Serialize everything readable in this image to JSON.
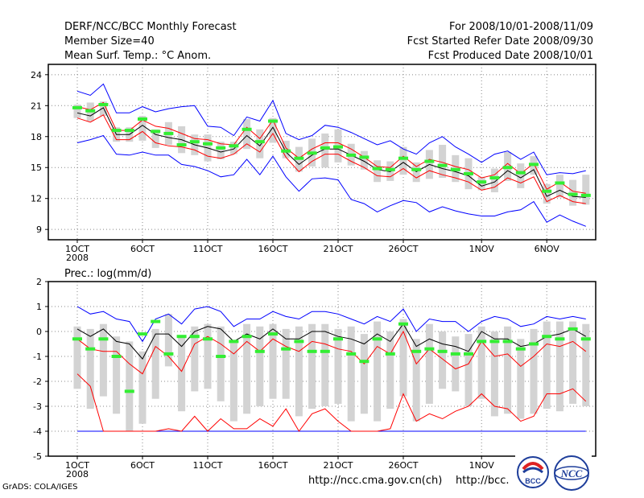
{
  "header": {
    "title": "DERF/NCC/BCC Monthly Forecast",
    "member_size": "Member Size=40",
    "variable": "Mean Surf. Temp.: °C Anom.",
    "period": "For 2008/10/01-2008/11/09",
    "started": "Fcst Started Refer Date 2008/09/30",
    "produced": "Fcst Produced Date 2008/10/01"
  },
  "footer": {
    "grads": "GrADS: COLA/IGES",
    "url1": "http://ncc.cma.gov.cn(ch)",
    "url2": "http://bcc.",
    "logo1": "BCC",
    "logo2": "NCC"
  },
  "colors": {
    "envelope": "#0000ff",
    "band": "#ff0000",
    "mean": "#000000",
    "obs_marker": "#33ee33",
    "box": "#d3d3d3"
  },
  "chart_data": [
    {
      "type": "line",
      "title": "Mean Surf. Temp.: °C Anom.",
      "x_tick_labels": [
        "1OCT",
        "6OCT",
        "11OCT",
        "16OCT",
        "21OCT",
        "26OCT",
        "1NOV",
        "6NOV"
      ],
      "x_tick_days": [
        0,
        5,
        10,
        15,
        20,
        25,
        31,
        36
      ],
      "x_sublabel": "2008",
      "ylim": [
        8,
        25
      ],
      "yticks": [
        9,
        12,
        15,
        18,
        21,
        24
      ],
      "days": [
        0,
        1,
        2,
        3,
        4,
        5,
        6,
        7,
        8,
        9,
        10,
        11,
        12,
        13,
        14,
        15,
        16,
        17,
        18,
        19,
        20,
        21,
        22,
        23,
        24,
        25,
        26,
        27,
        28,
        29,
        30,
        31,
        32,
        33,
        34,
        35,
        36,
        37,
        38,
        39
      ],
      "series": [
        {
          "name": "max",
          "values": [
            22.4,
            22.0,
            23.1,
            20.3,
            20.3,
            20.9,
            20.4,
            20.7,
            20.9,
            21.0,
            19.0,
            18.9,
            18.1,
            19.9,
            19.5,
            21.5,
            18.3,
            17.7,
            18.1,
            19.1,
            18.9,
            18.4,
            17.8,
            17.2,
            17.6,
            16.8,
            16.3,
            17.4,
            18.0,
            17.0,
            16.3,
            15.5,
            16.3,
            16.6,
            15.8,
            16.5,
            14.3,
            14.5,
            14.4,
            14.7
          ]
        },
        {
          "name": "upper",
          "values": [
            20.9,
            20.6,
            21.3,
            18.6,
            18.6,
            19.6,
            19.0,
            18.8,
            18.3,
            17.8,
            17.7,
            17.3,
            17.2,
            18.9,
            17.8,
            19.6,
            16.9,
            15.9,
            16.8,
            17.4,
            17.4,
            16.8,
            16.0,
            15.1,
            15.0,
            16.1,
            15.1,
            15.8,
            15.5,
            15.1,
            14.8,
            14.0,
            14.3,
            15.4,
            14.4,
            15.4,
            12.9,
            13.6,
            12.7,
            12.5
          ]
        },
        {
          "name": "mean",
          "values": [
            20.3,
            20.0,
            20.8,
            18.2,
            18.2,
            19.1,
            18.2,
            17.9,
            17.7,
            17.2,
            16.9,
            16.5,
            16.8,
            18.1,
            17.1,
            18.9,
            16.5,
            15.3,
            16.2,
            16.8,
            16.8,
            16.2,
            15.6,
            14.8,
            14.6,
            15.5,
            14.6,
            15.3,
            14.9,
            14.6,
            14.2,
            13.2,
            13.6,
            14.7,
            14.0,
            14.8,
            12.2,
            12.8,
            12.2,
            12.1
          ]
        },
        {
          "name": "lower",
          "values": [
            19.8,
            19.4,
            20.1,
            17.7,
            17.7,
            18.5,
            17.4,
            17.1,
            17.0,
            16.7,
            16.1,
            15.9,
            16.3,
            17.3,
            16.5,
            18.3,
            16.0,
            14.6,
            15.6,
            16.3,
            16.3,
            15.6,
            15.0,
            14.2,
            14.1,
            14.9,
            14.0,
            14.7,
            14.3,
            14.0,
            13.6,
            12.8,
            13.1,
            14.0,
            13.5,
            14.1,
            11.7,
            12.3,
            11.7,
            11.5
          ]
        },
        {
          "name": "min",
          "values": [
            17.4,
            17.7,
            18.1,
            16.3,
            16.2,
            16.5,
            16.2,
            16.2,
            15.3,
            15.1,
            14.7,
            14.1,
            14.3,
            15.8,
            14.3,
            16.1,
            14.1,
            12.7,
            13.9,
            14.0,
            13.8,
            11.9,
            11.5,
            10.7,
            11.3,
            11.8,
            11.6,
            10.7,
            11.2,
            10.8,
            10.5,
            10.3,
            10.3,
            10.7,
            10.9,
            11.7,
            9.7,
            10.4,
            9.8,
            9.3
          ]
        },
        {
          "name": "box_top",
          "values": [
            21.1,
            21.3,
            21.4,
            18.9,
            18.9,
            20.0,
            18.7,
            19.4,
            19.0,
            18.2,
            18.2,
            17.5,
            17.5,
            19.7,
            18.7,
            19.8,
            17.6,
            17.0,
            17.8,
            18.3,
            18.7,
            17.3,
            16.6,
            15.7,
            15.6,
            17.0,
            15.5,
            16.7,
            17.2,
            16.2,
            15.9,
            14.1,
            14.9,
            16.5,
            15.4,
            16.1,
            13.4,
            14.3,
            13.8,
            14.3
          ]
        },
        {
          "name": "box_bottom",
          "values": [
            19.8,
            19.5,
            20.0,
            17.5,
            17.5,
            17.6,
            16.9,
            17.2,
            16.4,
            16.2,
            15.6,
            15.8,
            16.3,
            16.8,
            15.9,
            17.4,
            15.9,
            14.6,
            15.1,
            15.0,
            15.5,
            15.2,
            14.8,
            13.6,
            13.7,
            14.3,
            13.6,
            13.9,
            14.0,
            13.6,
            12.9,
            12.8,
            12.6,
            13.7,
            13.0,
            14.3,
            11.5,
            12.1,
            11.3,
            11.4
          ]
        },
        {
          "name": "observed",
          "values": [
            20.8,
            20.5,
            21.1,
            18.6,
            18.6,
            19.7,
            18.5,
            18.3,
            17.2,
            17.5,
            17.3,
            16.9,
            17.1,
            18.7,
            17.5,
            19.5,
            16.6,
            15.9,
            16.4,
            16.9,
            17.0,
            16.2,
            16.0,
            14.9,
            14.8,
            15.9,
            14.8,
            15.6,
            15.2,
            14.8,
            14.4,
            13.6,
            14.0,
            15.0,
            14.5,
            15.3,
            12.7,
            13.5,
            12.4,
            12.3
          ]
        }
      ]
    },
    {
      "type": "line",
      "title": "Prec.: log(mm/d)",
      "x_tick_labels": [
        "1OCT",
        "6OCT",
        "11OCT",
        "16OCT",
        "21OCT",
        "26OCT",
        "1NOV",
        "6NOV"
      ],
      "x_tick_days": [
        0,
        5,
        10,
        15,
        20,
        25,
        31,
        36
      ],
      "x_sublabel": "2008",
      "ylim": [
        -5,
        2
      ],
      "yticks": [
        -5,
        -4,
        -3,
        -2,
        -1,
        0,
        1,
        2
      ],
      "days": [
        0,
        1,
        2,
        3,
        4,
        5,
        6,
        7,
        8,
        9,
        10,
        11,
        12,
        13,
        14,
        15,
        16,
        17,
        18,
        19,
        20,
        21,
        22,
        23,
        24,
        25,
        26,
        27,
        28,
        29,
        30,
        31,
        32,
        33,
        34,
        35,
        36,
        37,
        38,
        39
      ],
      "series": [
        {
          "name": "max",
          "values": [
            1.0,
            0.7,
            0.8,
            0.5,
            0.4,
            -0.4,
            0.5,
            0.7,
            0.3,
            0.9,
            1.0,
            0.8,
            0.2,
            0.5,
            0.5,
            0.8,
            0.6,
            0.5,
            0.8,
            0.8,
            0.7,
            0.5,
            0.3,
            0.6,
            0.4,
            0.9,
            0.0,
            0.5,
            0.4,
            0.4,
            0.0,
            0.4,
            0.6,
            0.5,
            0.2,
            0.3,
            0.6,
            0.5,
            0.6,
            0.5
          ]
        },
        {
          "name": "mean",
          "values": [
            0.1,
            -0.2,
            0.1,
            -0.4,
            -0.5,
            -1.1,
            -0.1,
            -0.1,
            -0.6,
            0.0,
            0.2,
            0.1,
            -0.4,
            -0.1,
            -0.3,
            0.1,
            -0.3,
            -0.3,
            0.0,
            0.0,
            -0.2,
            -0.3,
            -0.5,
            -0.1,
            -0.4,
            0.3,
            -0.6,
            -0.3,
            -0.5,
            -0.6,
            -0.8,
            0.0,
            -0.3,
            -0.3,
            -0.6,
            -0.5,
            -0.2,
            -0.1,
            0.1,
            -0.2
          ]
        },
        {
          "name": "upper",
          "values": [
            -0.3,
            -0.7,
            -0.8,
            -0.8,
            -1.3,
            -1.7,
            -0.6,
            -1.0,
            -1.6,
            -0.5,
            -0.2,
            -0.5,
            -0.9,
            -0.4,
            -0.8,
            -0.3,
            -0.6,
            -0.8,
            -0.4,
            -0.5,
            -0.7,
            -0.8,
            -1.3,
            -0.6,
            -0.9,
            0.0,
            -1.3,
            -0.7,
            -1.1,
            -1.5,
            -1.3,
            -0.4,
            -1.0,
            -0.9,
            -1.4,
            -1.0,
            -0.5,
            -0.6,
            -0.4,
            -0.8
          ]
        },
        {
          "name": "lower",
          "values": [
            -1.7,
            -2.2,
            -4.0,
            -4.0,
            -4.0,
            -4.0,
            -4.0,
            -3.9,
            -4.0,
            -3.4,
            -4.0,
            -3.5,
            -3.9,
            -3.9,
            -3.5,
            -3.8,
            -3.1,
            -4.0,
            -3.3,
            -3.1,
            -3.6,
            -4.0,
            -4.0,
            -4.0,
            -3.9,
            -2.5,
            -3.6,
            -3.3,
            -3.5,
            -3.2,
            -3.0,
            -2.5,
            -3.0,
            -3.1,
            -3.6,
            -3.4,
            -2.5,
            -2.5,
            -2.3,
            -2.8
          ]
        },
        {
          "name": "min",
          "values": [
            -4.0,
            -4.0,
            -4.0,
            -4.0,
            -4.0,
            -4.0,
            -4.0,
            -4.0,
            -4.0,
            -4.0,
            -4.0,
            -4.0,
            -4.0,
            -4.0,
            -4.0,
            -4.0,
            -4.0,
            -4.0,
            -4.0,
            -4.0,
            -4.0,
            -4.0,
            -4.0,
            -4.0,
            -4.0,
            -4.0,
            -4.0,
            -4.0,
            -4.0,
            -4.0,
            -4.0,
            -4.0,
            -4.0,
            -4.0,
            -4.0,
            -4.0,
            -4.0,
            -4.0,
            -4.0,
            -4.0
          ]
        },
        {
          "name": "box_top",
          "values": [
            0.2,
            0.1,
            0.3,
            -0.2,
            -0.4,
            -0.8,
            0.1,
            0.7,
            -0.2,
            0.2,
            0.3,
            0.2,
            -0.4,
            0.3,
            0.2,
            0.3,
            0.1,
            0.2,
            0.3,
            0.3,
            0.1,
            0.2,
            -0.1,
            0.4,
            0.0,
            0.5,
            -0.3,
            0.3,
            0.0,
            -0.2,
            -0.1,
            0.2,
            0.0,
            0.2,
            -0.3,
            0.1,
            0.4,
            0.4,
            0.4,
            0.3
          ]
        },
        {
          "name": "box_bottom",
          "values": [
            -2.3,
            -3.1,
            -2.6,
            -3.3,
            -4.0,
            -3.7,
            -2.7,
            -1.4,
            -3.2,
            -2.4,
            -2.3,
            -2.8,
            -3.6,
            -3.3,
            -3.0,
            -2.7,
            -2.7,
            -3.4,
            -3.1,
            -3.0,
            -2.9,
            -3.6,
            -3.3,
            -3.6,
            -3.1,
            -2.6,
            -3.6,
            -2.9,
            -2.3,
            -2.4,
            -3.0,
            -2.7,
            -3.4,
            -3.3,
            -3.5,
            -3.3,
            -3.1,
            -3.2,
            -2.9,
            -3.0
          ]
        },
        {
          "name": "observed",
          "values": [
            -0.3,
            -0.7,
            -0.3,
            -1.0,
            -2.4,
            -0.1,
            0.4,
            -0.9,
            -0.2,
            -0.2,
            -0.3,
            -1.0,
            -0.4,
            -0.2,
            -0.8,
            -0.1,
            -0.7,
            -0.4,
            -0.8,
            -0.8,
            -0.3,
            -0.9,
            -1.2,
            -0.3,
            -0.9,
            0.3,
            -0.8,
            -0.7,
            -0.8,
            -0.9,
            -0.9,
            -0.4,
            -0.4,
            -0.4,
            -0.7,
            -0.5,
            -0.2,
            -0.3,
            0.1,
            -0.3
          ]
        }
      ]
    }
  ]
}
